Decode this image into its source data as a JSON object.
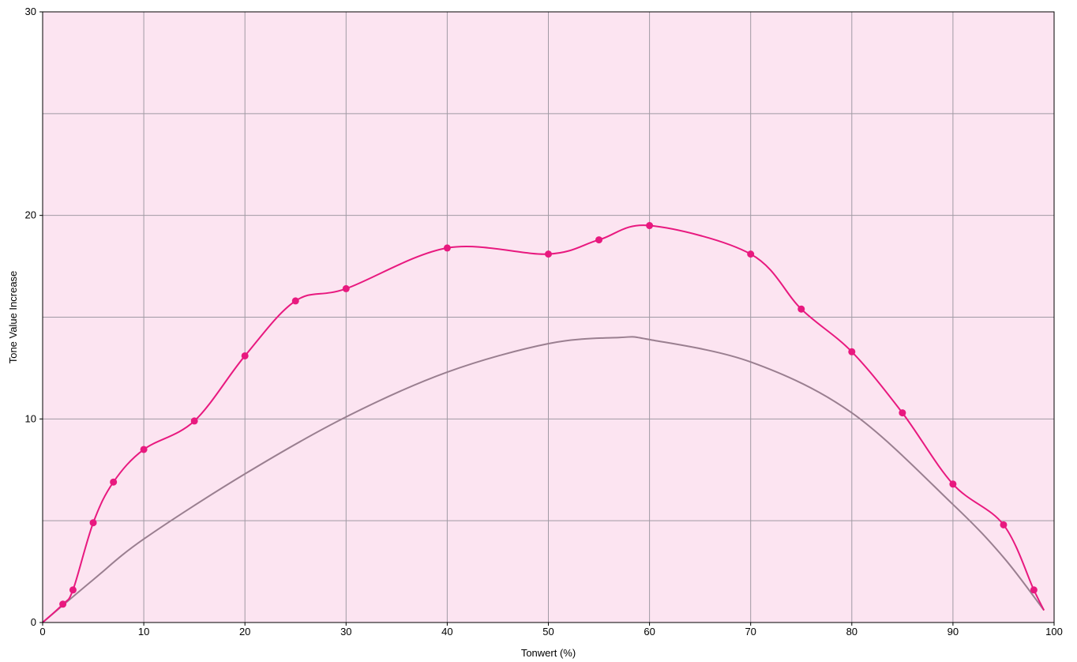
{
  "chart_data": {
    "type": "line",
    "title": "",
    "xlabel": "Tonwert (%)",
    "ylabel": "Tone Value Increase",
    "xlim": [
      0,
      100
    ],
    "ylim": [
      0,
      30
    ],
    "x_ticks": [
      0,
      10,
      20,
      30,
      40,
      50,
      60,
      70,
      80,
      90,
      100
    ],
    "y_ticks": [
      0,
      10,
      20,
      30
    ],
    "grid": true,
    "legend": "none",
    "colors": {
      "plot_background": "#fce4f1",
      "grid": "#a09aa4",
      "measured": "#e8197f",
      "reference": "#9a7f90",
      "axis": "#000000"
    },
    "series": [
      {
        "key": "measured",
        "style": "line-with-markers",
        "x": [
          0,
          2,
          3,
          5,
          7,
          10,
          15,
          20,
          25,
          30,
          40,
          50,
          55,
          60,
          70,
          75,
          80,
          85,
          90,
          95,
          98,
          99
        ],
        "y": [
          0,
          0.9,
          1.6,
          4.9,
          6.9,
          8.5,
          9.9,
          13.1,
          15.8,
          16.4,
          18.4,
          18.1,
          18.8,
          19.5,
          18.1,
          15.4,
          13.3,
          10.3,
          6.8,
          4.8,
          1.6,
          0.6
        ],
        "markers": [
          false,
          true,
          true,
          true,
          true,
          true,
          true,
          true,
          true,
          true,
          true,
          true,
          true,
          true,
          true,
          true,
          true,
          true,
          true,
          true,
          true,
          false
        ]
      },
      {
        "key": "reference",
        "style": "line",
        "x": [
          0,
          5,
          10,
          20,
          30,
          40,
          50,
          57,
          60,
          70,
          80,
          90,
          95,
          99
        ],
        "y": [
          0,
          2.1,
          4.1,
          7.3,
          10.1,
          12.3,
          13.7,
          14.0,
          13.9,
          12.8,
          10.3,
          5.8,
          3.2,
          0.6
        ]
      }
    ]
  }
}
